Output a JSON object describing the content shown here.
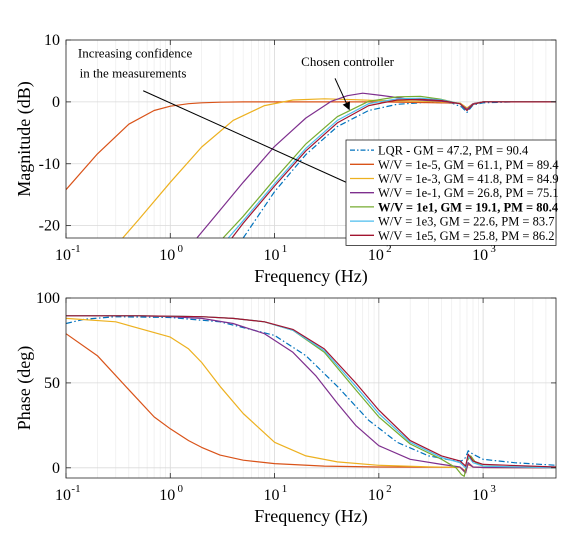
{
  "chart_data": [
    {
      "type": "line",
      "xscale": "log",
      "xlim": [
        0.1,
        5000
      ],
      "ylim": [
        -22,
        10
      ],
      "xlabel": "Frequency (Hz)",
      "ylabel": "Magnitude (dB)",
      "xticklabels": [
        {
          "value": 0.1,
          "base": "10",
          "exp": "-1"
        },
        {
          "value": 1,
          "base": "10",
          "exp": "0"
        },
        {
          "value": 10,
          "base": "10",
          "exp": "1"
        },
        {
          "value": 100,
          "base": "10",
          "exp": "2"
        },
        {
          "value": 1000,
          "base": "10",
          "exp": "3"
        }
      ],
      "yticks": [
        -20,
        -10,
        0,
        10
      ],
      "yticklabels": [
        "-20",
        "-10",
        "0",
        "10"
      ],
      "grid": true,
      "legend_position": "bottom-right",
      "annotations": [
        {
          "text": "Increasing confidence",
          "x": 0.13,
          "y": 7.2
        },
        {
          "text": "in the measurements",
          "x": 0.135,
          "y": 3.9
        },
        {
          "text": "Chosen controller",
          "x": 18,
          "y": 5.8
        }
      ],
      "series": [
        {
          "name": "LQR - GM = 47.2, PM = 90.4",
          "color": "#0072BD",
          "dash": "dashdot",
          "bold": false,
          "x": [
            5,
            10,
            20,
            40,
            80,
            150,
            300,
            500,
            620,
            700,
            800,
            1000,
            2000,
            5000
          ],
          "y": [
            -22,
            -14.5,
            -8.5,
            -4.0,
            -1.4,
            -0.4,
            -0.05,
            -0.2,
            -0.8,
            -1.7,
            -0.5,
            -0.15,
            0,
            0
          ]
        },
        {
          "name": "W/V = 1e-5, GM = 61.1, PM = 89.4",
          "color": "#D95319",
          "dash": "solid",
          "bold": false,
          "x": [
            0.1,
            0.2,
            0.4,
            0.7,
            1,
            1.5,
            2,
            3,
            5,
            10,
            100,
            600,
            700,
            800,
            1000,
            5000
          ],
          "y": [
            -14.2,
            -8.4,
            -3.6,
            -1.4,
            -0.7,
            -0.3,
            -0.15,
            -0.05,
            0,
            0,
            0,
            -0.2,
            -1.0,
            -0.3,
            0,
            0
          ]
        },
        {
          "name": "W/V = 1e-3, GM = 41.8, PM = 84.9",
          "color": "#EDB120",
          "dash": "solid",
          "bold": false,
          "x": [
            0.35,
            0.5,
            1,
            2,
            4,
            8,
            15,
            30,
            60,
            100,
            300,
            600,
            700,
            800,
            1000,
            5000
          ],
          "y": [
            -22,
            -19,
            -13,
            -7.3,
            -3.0,
            -0.6,
            0.3,
            0.5,
            0.35,
            0.2,
            0.1,
            -0.2,
            -1.0,
            -0.3,
            0,
            0
          ]
        },
        {
          "name": "W/V = 1e-1, GM = 26.8, PM = 75.1",
          "color": "#7E2F8E",
          "dash": "solid",
          "bold": false,
          "x": [
            1.8,
            3,
            5,
            10,
            20,
            35,
            50,
            70,
            100,
            200,
            400,
            600,
            700,
            800,
            1000,
            5000
          ],
          "y": [
            -22,
            -17.5,
            -13,
            -7.2,
            -2.6,
            0.1,
            1.0,
            1.4,
            1.1,
            0.4,
            0.1,
            -0.3,
            -1.2,
            -0.3,
            0,
            0
          ]
        },
        {
          "name": "W/V = 1e1, GM = 19.1, PM = 80.4",
          "color": "#77AC30",
          "dash": "solid",
          "bold": true,
          "x": [
            3.2,
            5,
            10,
            20,
            40,
            80,
            150,
            250,
            400,
            600,
            700,
            800,
            1000,
            5000
          ],
          "y": [
            -22,
            -18.5,
            -12.5,
            -6.8,
            -2.4,
            0.1,
            0.8,
            0.9,
            0.4,
            -0.3,
            -1.4,
            -0.4,
            0,
            0
          ]
        },
        {
          "name": "W/V = 1e3, GM = 22.6, PM = 83.7",
          "color": "#4DBEEE",
          "dash": "solid",
          "bold": false,
          "x": [
            3.6,
            5,
            10,
            20,
            40,
            80,
            150,
            250,
            400,
            600,
            700,
            800,
            1000,
            5000
          ],
          "y": [
            -22,
            -19.2,
            -13.2,
            -7.5,
            -3.0,
            -0.3,
            0.5,
            0.6,
            0.3,
            -0.3,
            -1.4,
            -0.4,
            0,
            0
          ]
        },
        {
          "name": "W/V = 1e5, GM = 25.8, PM = 86.2",
          "color": "#A2142F",
          "dash": "solid",
          "bold": false,
          "x": [
            3.9,
            5,
            10,
            20,
            40,
            80,
            150,
            250,
            400,
            600,
            700,
            800,
            1000,
            5000
          ],
          "y": [
            -22,
            -19.6,
            -13.6,
            -7.9,
            -3.4,
            -0.6,
            0.3,
            0.4,
            0.2,
            -0.3,
            -1.4,
            -0.4,
            0,
            0
          ]
        }
      ]
    },
    {
      "type": "line",
      "xscale": "log",
      "xlim": [
        0.1,
        5000
      ],
      "ylim": [
        -6,
        100
      ],
      "xlabel": "Frequency (Hz)",
      "ylabel": "Phase (deg)",
      "xticklabels": [
        {
          "value": 0.1,
          "base": "10",
          "exp": "-1"
        },
        {
          "value": 1,
          "base": "10",
          "exp": "0"
        },
        {
          "value": 10,
          "base": "10",
          "exp": "1"
        },
        {
          "value": 100,
          "base": "10",
          "exp": "2"
        },
        {
          "value": 1000,
          "base": "10",
          "exp": "3"
        }
      ],
      "yticks": [
        0,
        50,
        100
      ],
      "yticklabels": [
        "0",
        "50",
        "100"
      ],
      "grid": true,
      "series": [
        {
          "name": "LQR - GM = 47.2, PM = 90.4",
          "color": "#0072BD",
          "dash": "dashdot",
          "x": [
            0.1,
            0.15,
            0.3,
            1,
            3,
            10,
            20,
            40,
            80,
            150,
            300,
            500,
            620,
            680,
            720,
            800,
            1000,
            2000,
            5000
          ],
          "y": [
            85,
            87.5,
            89,
            88.5,
            86,
            78,
            66,
            48,
            28,
            15,
            7,
            4.5,
            4,
            6,
            10,
            8,
            5,
            3,
            1.5
          ]
        },
        {
          "name": "W/V = 1e-5, GM = 61.1, PM = 89.4",
          "color": "#D95319",
          "dash": "solid",
          "x": [
            0.1,
            0.2,
            0.4,
            0.7,
            1,
            1.5,
            2,
            3,
            5,
            10,
            30,
            100,
            600,
            680,
            720,
            800,
            1000,
            5000
          ],
          "y": [
            79,
            66,
            46,
            30,
            23,
            16,
            12,
            7.5,
            4.5,
            2.5,
            1,
            0.5,
            0.3,
            -2,
            2,
            0.5,
            0.2,
            0
          ]
        },
        {
          "name": "W/V = 1e-3, GM = 41.8, PM = 84.9",
          "color": "#EDB120",
          "dash": "solid",
          "x": [
            0.1,
            0.3,
            1,
            1.5,
            2,
            3,
            5,
            10,
            20,
            40,
            100,
            300,
            600,
            680,
            720,
            800,
            1000,
            5000
          ],
          "y": [
            88,
            86,
            77,
            70,
            62,
            48,
            32,
            15,
            7,
            3.5,
            1.5,
            0.6,
            0.2,
            -3,
            3,
            0.5,
            0.2,
            0
          ]
        },
        {
          "name": "W/V = 1e-1, GM = 26.8, PM = 75.1",
          "color": "#7E2F8E",
          "dash": "solid",
          "x": [
            0.1,
            0.5,
            1,
            2,
            4,
            8,
            15,
            25,
            40,
            60,
            100,
            200,
            400,
            600,
            680,
            720,
            800,
            1000,
            5000
          ],
          "y": [
            89.5,
            89.5,
            89,
            88,
            85,
            79,
            68,
            54,
            38,
            25,
            13,
            5,
            2,
            0.5,
            -3,
            3,
            0.5,
            0.2,
            0
          ]
        },
        {
          "name": "W/V = 1e1, GM = 19.1, PM = 80.4",
          "color": "#77AC30",
          "dash": "solid",
          "x": [
            0.1,
            0.5,
            1,
            2,
            4,
            8,
            15,
            30,
            60,
            100,
            200,
            400,
            550,
            620,
            660,
            700,
            760,
            850,
            1000,
            5000
          ],
          "y": [
            89.5,
            89.5,
            89.3,
            89,
            88,
            86,
            81,
            68,
            46,
            30,
            14,
            5,
            0,
            -4,
            -5,
            4,
            7,
            3,
            1,
            0
          ]
        },
        {
          "name": "W/V = 1e3, GM = 22.6, PM = 83.7",
          "color": "#4DBEEE",
          "dash": "solid",
          "x": [
            0.1,
            0.5,
            1,
            2,
            4,
            8,
            15,
            30,
            60,
            100,
            200,
            400,
            600,
            680,
            720,
            800,
            1000,
            5000
          ],
          "y": [
            89.5,
            89.5,
            89.3,
            89,
            88,
            86,
            81,
            69,
            48,
            32,
            15,
            6,
            3,
            0,
            7,
            3,
            1,
            0
          ]
        },
        {
          "name": "W/V = 1e5, GM = 25.8, PM = 86.2",
          "color": "#A2142F",
          "dash": "solid",
          "x": [
            0.1,
            0.5,
            1,
            2,
            4,
            8,
            15,
            30,
            60,
            100,
            200,
            400,
            600,
            680,
            720,
            800,
            1000,
            5000
          ],
          "y": [
            89.5,
            89.5,
            89.3,
            89,
            88,
            86,
            81.5,
            70,
            50,
            34,
            16,
            7,
            4,
            1,
            8,
            4,
            2,
            0.5
          ]
        }
      ]
    }
  ]
}
